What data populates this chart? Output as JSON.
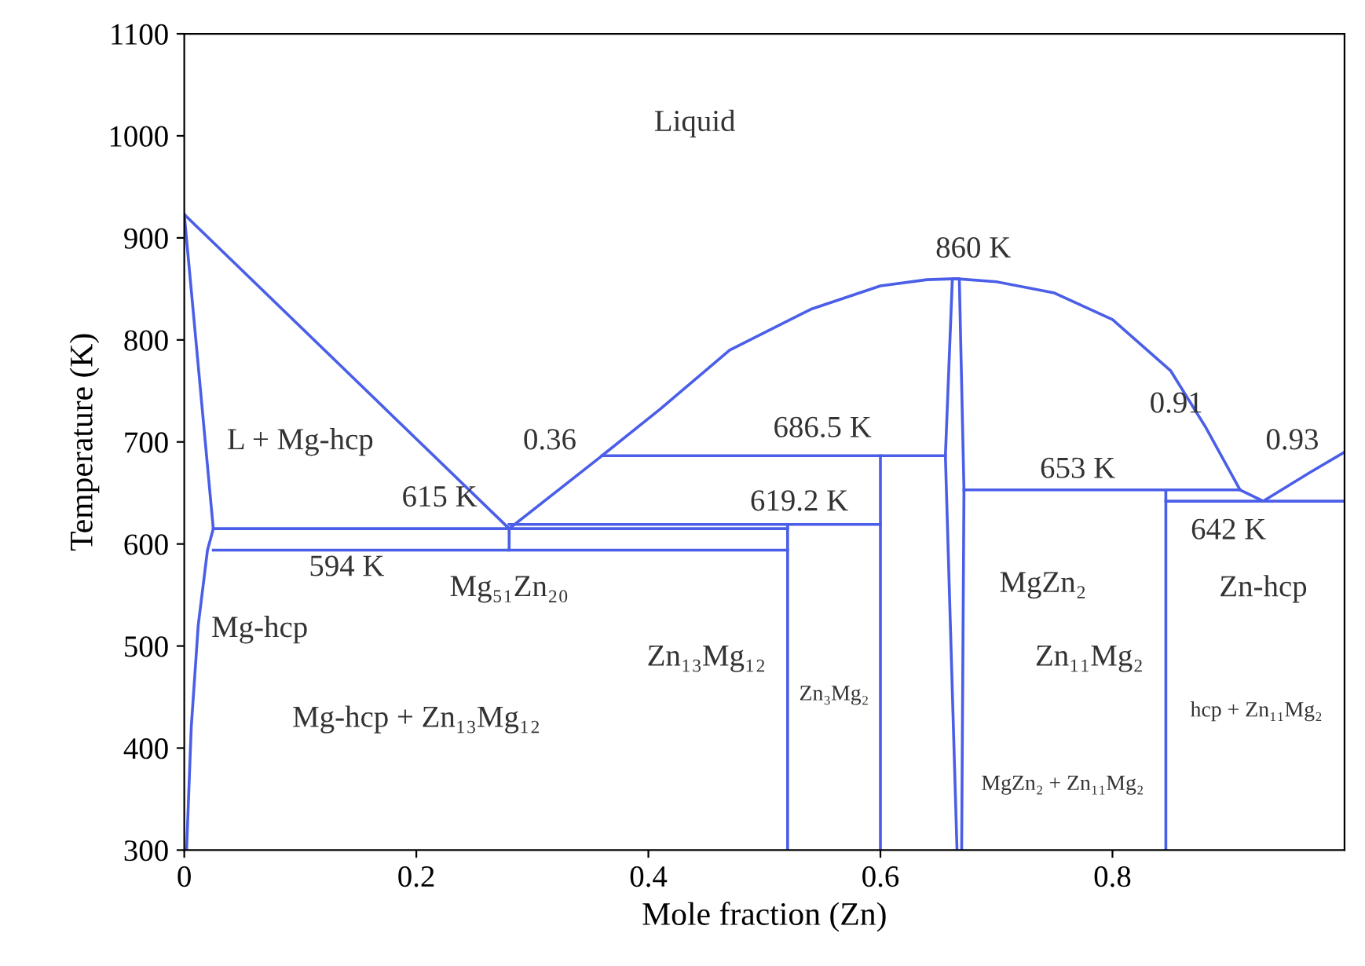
{
  "chart_data": {
    "type": "line",
    "xlabel": "Mole fraction (Zn)",
    "ylabel": "Temperature (K)",
    "xlim": [
      0,
      1
    ],
    "ylim": [
      300,
      1100
    ],
    "xticks": [
      0,
      0.2,
      0.4,
      0.6,
      0.8
    ],
    "yticks": [
      300,
      400,
      500,
      600,
      700,
      800,
      900,
      1000,
      1100
    ],
    "grid": false,
    "legend": false,
    "marker": "none",
    "line_style": "solid",
    "series": [
      {
        "color": "#4a5ee8",
        "x": [
          0,
          0.28
        ],
        "values": [
          923,
          615
        ]
      },
      {
        "color": "#4a5ee8",
        "x": [
          0,
          0.025,
          0.02,
          0.012,
          0.006,
          0.002
        ],
        "values": [
          923,
          615,
          594,
          520,
          420,
          300
        ]
      },
      {
        "color": "#4a5ee8",
        "x": [
          0.025,
          0.52
        ],
        "values": [
          615,
          615
        ]
      },
      {
        "color": "#4a5ee8",
        "x": [
          0.025,
          0.52
        ],
        "values": [
          594,
          594
        ]
      },
      {
        "color": "#4a5ee8",
        "x": [
          0.28,
          0.28
        ],
        "values": [
          615,
          594
        ]
      },
      {
        "color": "#4a5ee8",
        "x": [
          0.28,
          0.6
        ],
        "values": [
          619.2,
          619.2
        ]
      },
      {
        "color": "#4a5ee8",
        "x": [
          0.52,
          0.52
        ],
        "values": [
          619.2,
          300
        ]
      },
      {
        "color": "#4a5ee8",
        "x": [
          0.6,
          0.6
        ],
        "values": [
          686.5,
          300
        ]
      },
      {
        "color": "#4a5ee8",
        "x": [
          0.36,
          0.656
        ],
        "values": [
          686.5,
          686.5
        ]
      },
      {
        "color": "#4a5ee8",
        "x": [
          0.28,
          0.36,
          0.41,
          0.47,
          0.54,
          0.6,
          0.64,
          0.665,
          0.7,
          0.75,
          0.8,
          0.85,
          0.88,
          0.91,
          0.93,
          0.97,
          1.0
        ],
        "values": [
          615,
          686.5,
          732,
          790,
          830,
          853,
          859,
          860,
          857,
          846,
          820,
          770,
          715,
          653,
          642,
          670,
          690
        ]
      },
      {
        "color": "#4a5ee8",
        "x": [
          0.666,
          0.656,
          0.662,
          0.668,
          0.672,
          0.67
        ],
        "values": [
          300,
          686.5,
          860,
          860,
          653,
          300
        ]
      },
      {
        "color": "#4a5ee8",
        "x": [
          0.672,
          0.91
        ],
        "values": [
          653,
          653
        ]
      },
      {
        "color": "#4a5ee8",
        "x": [
          0.846,
          1.0
        ],
        "values": [
          642,
          642
        ]
      },
      {
        "color": "#4a5ee8",
        "x": [
          0.846,
          0.846
        ],
        "values": [
          653,
          300
        ]
      }
    ],
    "annotations": [
      "Liquid",
      "860 K",
      "L + Mg-hcp",
      "0.36",
      "686.5 K",
      "615 K",
      "594 K",
      "619.2 K",
      "653 K",
      "0.91",
      "0.93",
      "642 K",
      "Mg₅₁Zn₂₀",
      "Mg-hcp",
      "MgZn₂",
      "Zn₁₃Mg₁₂",
      "Zn₃Mg₂",
      "Zn₁₁Mg₂",
      "Zn-hcp",
      "Mg-hcp + Zn₁₃Mg₁₂",
      "MgZn₂ + Zn₁₁Mg₂",
      "hcp + Zn₁₁Mg₂"
    ]
  }
}
